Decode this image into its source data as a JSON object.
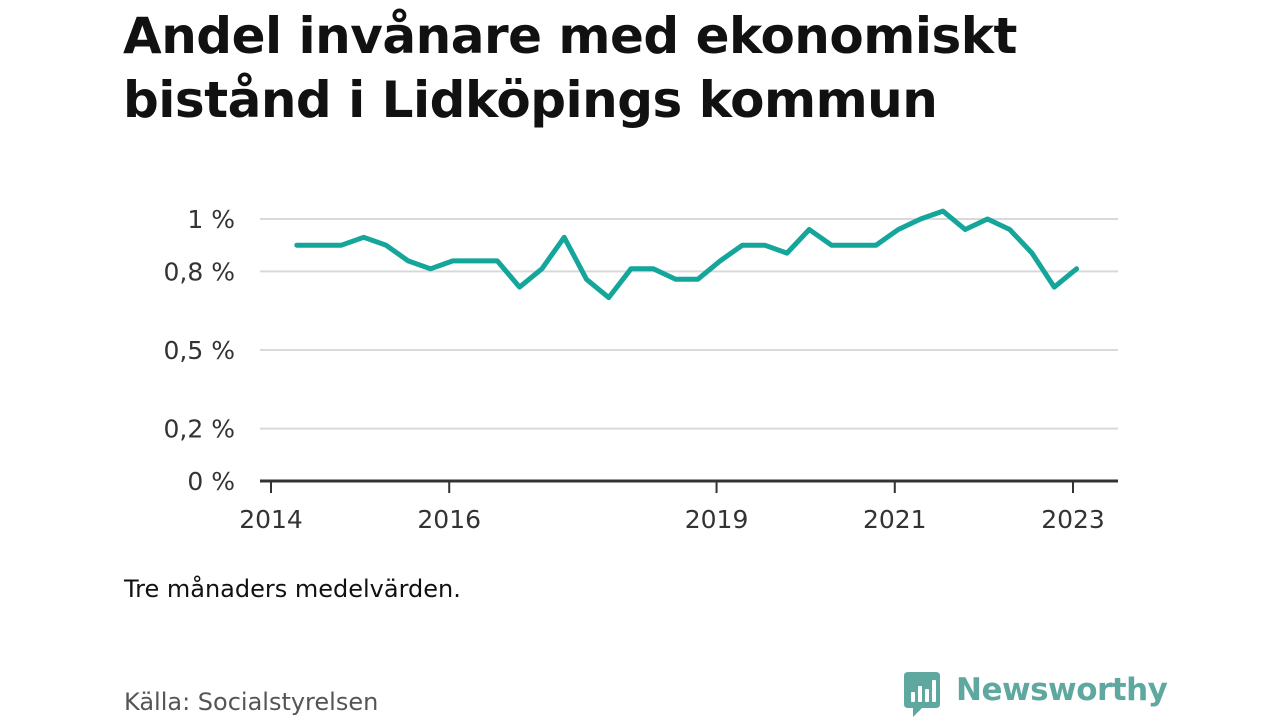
{
  "title": "Andel invånare med ekonomiskt bistånd i Lidköpings kommun",
  "note": "Tre månaders medelvärden.",
  "source": "Källa: Socialstyrelsen",
  "brand": {
    "name": "Newsworthy",
    "icon": "newsworthy-bar-chart-speech-bubble-icon",
    "color": "#5fa8a0"
  },
  "colors": {
    "line": "#14a59b",
    "grid": "#d9d9d9",
    "axis": "#333333",
    "text": "#333333"
  },
  "chart_data": {
    "type": "line",
    "title": "Andel invånare med ekonomiskt bistånd i Lidköpings kommun",
    "xlabel": "",
    "ylabel": "",
    "x_ticks": [
      {
        "value": 2014,
        "label": "2014"
      },
      {
        "value": 2016,
        "label": "2016"
      },
      {
        "value": 2019,
        "label": "2019"
      },
      {
        "value": 2021,
        "label": "2021"
      },
      {
        "value": 2023,
        "label": "2023"
      }
    ],
    "y_ticks": [
      {
        "value": 0,
        "label": "0 %"
      },
      {
        "value": 0.2,
        "label": "0,2 %"
      },
      {
        "value": 0.5,
        "label": "0,5 %"
      },
      {
        "value": 0.8,
        "label": "0,8 %"
      },
      {
        "value": 1.0,
        "label": "1 %"
      }
    ],
    "xlim": [
      2014,
      2023.5
    ],
    "ylim": [
      0,
      1.0
    ],
    "grid": true,
    "legend": "none",
    "series": [
      {
        "x": [
          2014.29,
          2014.54,
          2014.79,
          2015.04,
          2015.29,
          2015.54,
          2015.79,
          2016.04,
          2016.29,
          2016.54,
          2016.79,
          2017.04,
          2017.29,
          2017.54,
          2017.79,
          2018.04,
          2018.29,
          2018.54,
          2018.79,
          2019.04,
          2019.29,
          2019.54,
          2019.79,
          2020.04,
          2020.29,
          2020.54,
          2020.79,
          2021.04,
          2021.29,
          2021.54,
          2021.79,
          2022.04,
          2022.29,
          2022.54,
          2022.79,
          2023.04
        ],
        "y": [
          0.9,
          0.9,
          0.9,
          0.93,
          0.9,
          0.84,
          0.81,
          0.84,
          0.84,
          0.84,
          0.74,
          0.81,
          0.93,
          0.77,
          0.7,
          0.81,
          0.81,
          0.77,
          0.77,
          0.84,
          0.9,
          0.9,
          0.87,
          0.96,
          0.9,
          0.9,
          0.9,
          0.96,
          1.0,
          1.03,
          0.96,
          1.0,
          0.96,
          0.87,
          0.74,
          0.81
        ]
      }
    ]
  }
}
